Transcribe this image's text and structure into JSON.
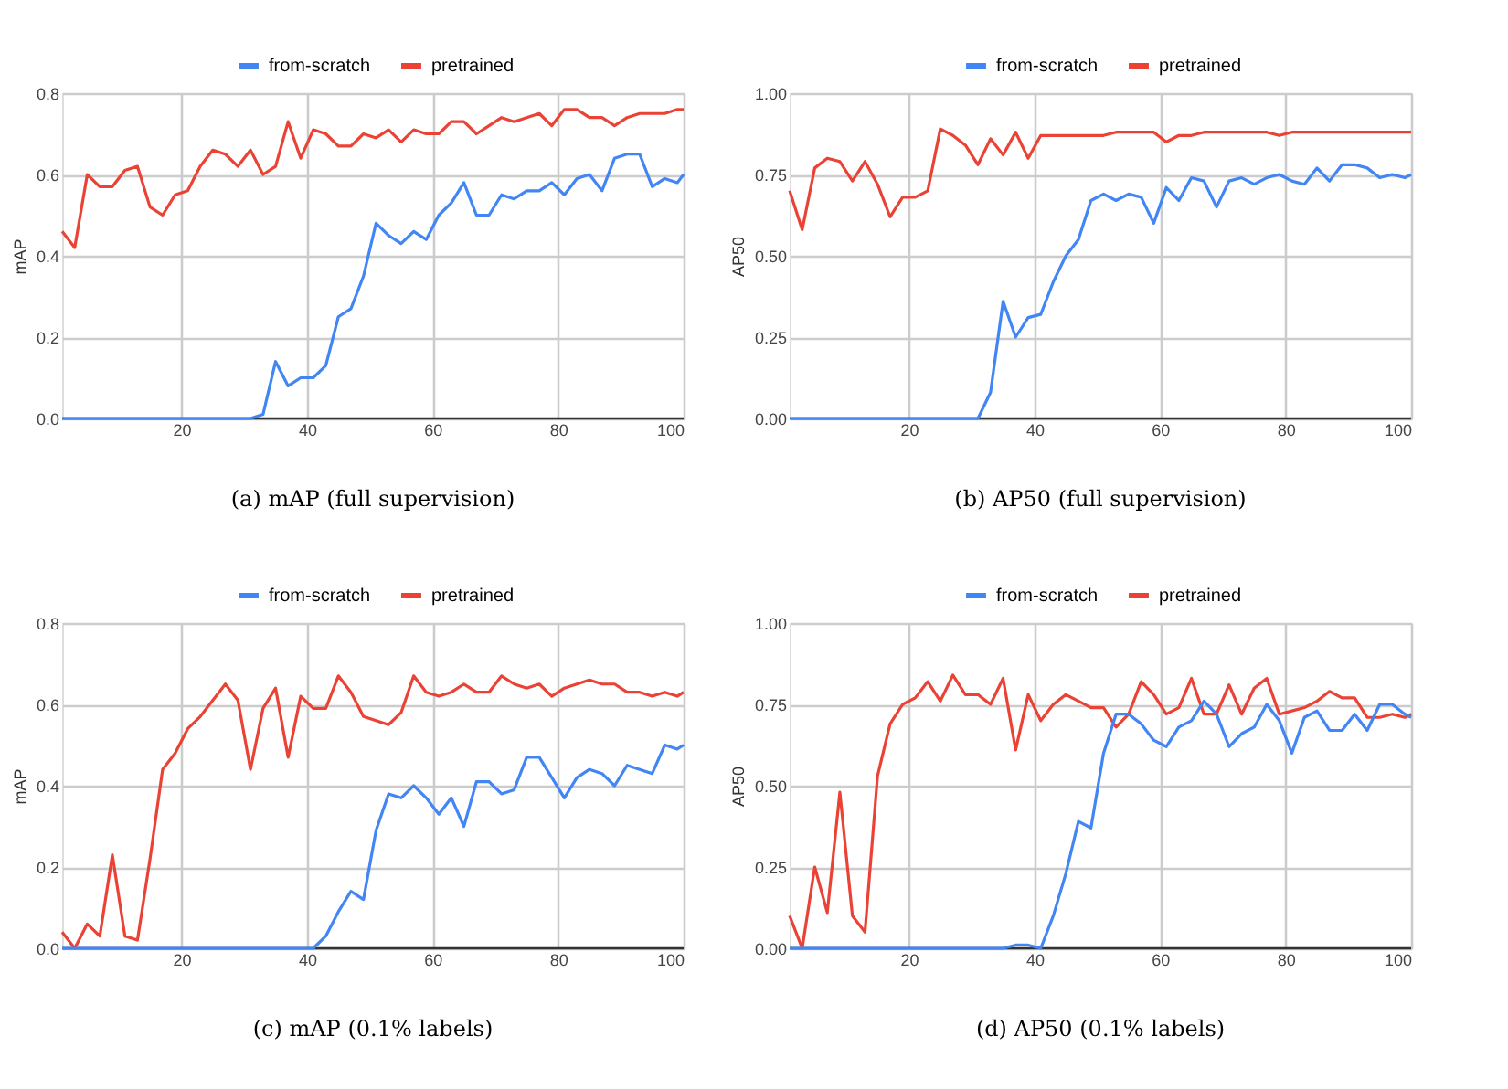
{
  "chart_data": [
    {
      "type": "line",
      "title": "(a) mAP (full supervision)",
      "ylabel": "mAP",
      "legend": "top",
      "grid": true,
      "x": [
        1,
        3,
        5,
        7,
        9,
        11,
        13,
        15,
        17,
        19,
        21,
        23,
        25,
        27,
        29,
        31,
        33,
        35,
        37,
        39,
        41,
        43,
        45,
        47,
        49,
        51,
        53,
        55,
        57,
        59,
        61,
        63,
        65,
        67,
        69,
        71,
        73,
        75,
        77,
        79,
        81,
        83,
        85,
        87,
        89,
        91,
        93,
        95,
        97,
        99,
        100
      ],
      "xlim": [
        1,
        100
      ],
      "xticks": [
        20,
        40,
        60,
        80,
        100
      ],
      "ylim": [
        0,
        0.8
      ],
      "yticks": [
        {
          "value": 0,
          "label": "0.0"
        },
        0.2,
        0.4,
        0.6,
        0.8
      ],
      "series": [
        {
          "name": "from-scratch",
          "color": "#4285f4",
          "values": [
            0,
            0,
            0,
            0,
            0,
            0,
            0,
            0,
            0,
            0,
            0,
            0,
            0,
            0,
            0,
            0,
            0.01,
            0.14,
            0.08,
            0.1,
            0.1,
            0.13,
            0.25,
            0.27,
            0.35,
            0.48,
            0.45,
            0.43,
            0.46,
            0.44,
            0.5,
            0.53,
            0.58,
            0.5,
            0.5,
            0.55,
            0.54,
            0.56,
            0.56,
            0.58,
            0.55,
            0.59,
            0.6,
            0.56,
            0.64,
            0.65,
            0.65,
            0.57,
            0.59,
            0.58,
            0.6
          ]
        },
        {
          "name": "pretrained",
          "color": "#ea4335",
          "values": [
            0.46,
            0.42,
            0.6,
            0.57,
            0.57,
            0.61,
            0.62,
            0.52,
            0.5,
            0.55,
            0.56,
            0.62,
            0.66,
            0.65,
            0.62,
            0.66,
            0.6,
            0.62,
            0.73,
            0.64,
            0.71,
            0.7,
            0.67,
            0.67,
            0.7,
            0.69,
            0.71,
            0.68,
            0.71,
            0.7,
            0.7,
            0.73,
            0.73,
            0.7,
            0.72,
            0.74,
            0.73,
            0.74,
            0.75,
            0.72,
            0.76,
            0.76,
            0.74,
            0.74,
            0.72,
            0.74,
            0.75,
            0.75,
            0.75,
            0.76,
            0.76
          ]
        }
      ]
    },
    {
      "type": "line",
      "title": "(b) AP50 (full supervision)",
      "ylabel": "AP50",
      "legend": "top",
      "grid": true,
      "x": [
        1,
        3,
        5,
        7,
        9,
        11,
        13,
        15,
        17,
        19,
        21,
        23,
        25,
        27,
        29,
        31,
        33,
        35,
        37,
        39,
        41,
        43,
        45,
        47,
        49,
        51,
        53,
        55,
        57,
        59,
        61,
        63,
        65,
        67,
        69,
        71,
        73,
        75,
        77,
        79,
        81,
        83,
        85,
        87,
        89,
        91,
        93,
        95,
        97,
        99,
        100
      ],
      "xlim": [
        1,
        100
      ],
      "xticks": [
        20,
        40,
        60,
        80,
        100
      ],
      "ylim": [
        0,
        1
      ],
      "yticks": [
        {
          "value": 0,
          "label": "0.00"
        },
        0.25,
        {
          "value": 0.5,
          "label": "0.50"
        },
        0.75,
        {
          "value": 1,
          "label": "1.00"
        }
      ],
      "series": [
        {
          "name": "from-scratch",
          "color": "#4285f4",
          "values": [
            0,
            0,
            0,
            0,
            0,
            0,
            0,
            0,
            0,
            0,
            0,
            0,
            0,
            0,
            0,
            0,
            0.08,
            0.36,
            0.25,
            0.31,
            0.32,
            0.42,
            0.5,
            0.55,
            0.67,
            0.69,
            0.67,
            0.69,
            0.68,
            0.6,
            0.71,
            0.67,
            0.74,
            0.73,
            0.65,
            0.73,
            0.74,
            0.72,
            0.74,
            0.75,
            0.73,
            0.72,
            0.77,
            0.73,
            0.78,
            0.78,
            0.77,
            0.74,
            0.75,
            0.74,
            0.75
          ]
        },
        {
          "name": "pretrained",
          "color": "#ea4335",
          "values": [
            0.7,
            0.58,
            0.77,
            0.8,
            0.79,
            0.73,
            0.79,
            0.72,
            0.62,
            0.68,
            0.68,
            0.7,
            0.89,
            0.87,
            0.84,
            0.78,
            0.86,
            0.81,
            0.88,
            0.8,
            0.87,
            0.87,
            0.87,
            0.87,
            0.87,
            0.87,
            0.88,
            0.88,
            0.88,
            0.88,
            0.85,
            0.87,
            0.87,
            0.88,
            0.88,
            0.88,
            0.88,
            0.88,
            0.88,
            0.87,
            0.88,
            0.88,
            0.88,
            0.88,
            0.88,
            0.88,
            0.88,
            0.88,
            0.88,
            0.88,
            0.88
          ]
        }
      ]
    },
    {
      "type": "line",
      "title": "(c) mAP (0.1% labels)",
      "ylabel": "mAP",
      "legend": "top",
      "grid": true,
      "x": [
        1,
        3,
        5,
        7,
        9,
        11,
        13,
        15,
        17,
        19,
        21,
        23,
        25,
        27,
        29,
        31,
        33,
        35,
        37,
        39,
        41,
        43,
        45,
        47,
        49,
        51,
        53,
        55,
        57,
        59,
        61,
        63,
        65,
        67,
        69,
        71,
        73,
        75,
        77,
        79,
        81,
        83,
        85,
        87,
        89,
        91,
        93,
        95,
        97,
        99,
        100
      ],
      "xlim": [
        1,
        100
      ],
      "xticks": [
        20,
        40,
        60,
        80,
        100
      ],
      "ylim": [
        0,
        0.8
      ],
      "yticks": [
        {
          "value": 0,
          "label": "0.0"
        },
        0.2,
        0.4,
        0.6,
        0.8
      ],
      "series": [
        {
          "name": "from-scratch",
          "color": "#4285f4",
          "values": [
            0,
            0,
            0,
            0,
            0,
            0,
            0,
            0,
            0,
            0,
            0,
            0,
            0,
            0,
            0,
            0,
            0,
            0,
            0,
            0,
            0,
            0.03,
            0.09,
            0.14,
            0.12,
            0.29,
            0.38,
            0.37,
            0.4,
            0.37,
            0.33,
            0.37,
            0.3,
            0.41,
            0.41,
            0.38,
            0.39,
            0.47,
            0.47,
            0.42,
            0.37,
            0.42,
            0.44,
            0.43,
            0.4,
            0.45,
            0.44,
            0.43,
            0.5,
            0.49,
            0.5
          ]
        },
        {
          "name": "pretrained",
          "color": "#ea4335",
          "values": [
            0.04,
            0.0,
            0.06,
            0.03,
            0.23,
            0.03,
            0.02,
            0.22,
            0.44,
            0.48,
            0.54,
            0.57,
            0.61,
            0.65,
            0.61,
            0.44,
            0.59,
            0.64,
            0.47,
            0.62,
            0.59,
            0.59,
            0.67,
            0.63,
            0.57,
            0.56,
            0.55,
            0.58,
            0.67,
            0.63,
            0.62,
            0.63,
            0.65,
            0.63,
            0.63,
            0.67,
            0.65,
            0.64,
            0.65,
            0.62,
            0.64,
            0.65,
            0.66,
            0.65,
            0.65,
            0.63,
            0.63,
            0.62,
            0.63,
            0.62,
            0.63
          ]
        }
      ]
    },
    {
      "type": "line",
      "title": "(d) AP50 (0.1% labels)",
      "ylabel": "AP50",
      "legend": "top",
      "grid": true,
      "x": [
        1,
        3,
        5,
        7,
        9,
        11,
        13,
        15,
        17,
        19,
        21,
        23,
        25,
        27,
        29,
        31,
        33,
        35,
        37,
        39,
        41,
        43,
        45,
        47,
        49,
        51,
        53,
        55,
        57,
        59,
        61,
        63,
        65,
        67,
        69,
        71,
        73,
        75,
        77,
        79,
        81,
        83,
        85,
        87,
        89,
        91,
        93,
        95,
        97,
        99,
        100
      ],
      "xlim": [
        1,
        100
      ],
      "xticks": [
        20,
        40,
        60,
        80,
        100
      ],
      "ylim": [
        0,
        1
      ],
      "yticks": [
        {
          "value": 0,
          "label": "0.00"
        },
        0.25,
        {
          "value": 0.5,
          "label": "0.50"
        },
        0.75,
        {
          "value": 1,
          "label": "1.00"
        }
      ],
      "series": [
        {
          "name": "from-scratch",
          "color": "#4285f4",
          "values": [
            0,
            0,
            0,
            0,
            0,
            0,
            0,
            0,
            0,
            0,
            0,
            0,
            0,
            0,
            0,
            0,
            0,
            0,
            0.01,
            0.01,
            0.0,
            0.1,
            0.23,
            0.39,
            0.37,
            0.6,
            0.72,
            0.72,
            0.69,
            0.64,
            0.62,
            0.68,
            0.7,
            0.76,
            0.72,
            0.62,
            0.66,
            0.68,
            0.75,
            0.7,
            0.6,
            0.71,
            0.73,
            0.67,
            0.67,
            0.72,
            0.67,
            0.75,
            0.75,
            0.72,
            0.71
          ]
        },
        {
          "name": "pretrained",
          "color": "#ea4335",
          "values": [
            0.1,
            0.0,
            0.25,
            0.11,
            0.48,
            0.1,
            0.05,
            0.53,
            0.69,
            0.75,
            0.77,
            0.82,
            0.76,
            0.84,
            0.78,
            0.78,
            0.75,
            0.83,
            0.61,
            0.78,
            0.7,
            0.75,
            0.78,
            0.76,
            0.74,
            0.74,
            0.68,
            0.72,
            0.82,
            0.78,
            0.72,
            0.74,
            0.83,
            0.72,
            0.72,
            0.81,
            0.72,
            0.8,
            0.83,
            0.72,
            0.73,
            0.74,
            0.76,
            0.79,
            0.77,
            0.77,
            0.71,
            0.71,
            0.72,
            0.71,
            0.72
          ]
        }
      ]
    }
  ]
}
